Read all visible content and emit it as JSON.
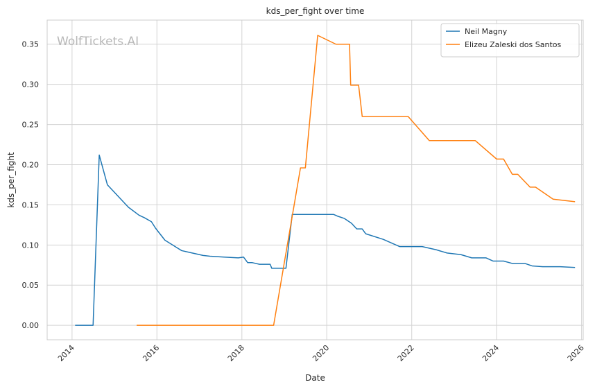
{
  "chart_data": {
    "type": "line",
    "title": "kds_per_fight over time",
    "xlabel": "Date",
    "ylabel": "kds_per_fight",
    "watermark": "WolfTickets.AI",
    "x_type": "date",
    "xlim": [
      "2013-06-01",
      "2026-01-15"
    ],
    "ylim": [
      -0.018,
      0.38
    ],
    "x_ticks": [
      "2014",
      "2016",
      "2018",
      "2020",
      "2022",
      "2024",
      "2026"
    ],
    "y_ticks": [
      "0.00",
      "0.05",
      "0.10",
      "0.15",
      "0.20",
      "0.25",
      "0.30",
      "0.35"
    ],
    "grid": true,
    "legend_position": "top-right",
    "series": [
      {
        "name": "Neil Magny",
        "color": "#1f77b4",
        "points": [
          [
            "2014-02-01",
            0.0
          ],
          [
            "2014-07-01",
            0.0
          ],
          [
            "2014-08-23",
            0.212
          ],
          [
            "2014-11-01",
            0.175
          ],
          [
            "2015-05-01",
            0.147
          ],
          [
            "2015-08-01",
            0.137
          ],
          [
            "2015-09-15",
            0.134
          ],
          [
            "2015-11-15",
            0.129
          ],
          [
            "2015-12-20",
            0.121
          ],
          [
            "2016-03-10",
            0.106
          ],
          [
            "2016-08-01",
            0.093
          ],
          [
            "2016-10-01",
            0.091
          ],
          [
            "2017-02-01",
            0.087
          ],
          [
            "2017-04-01",
            0.086
          ],
          [
            "2017-08-01",
            0.085
          ],
          [
            "2017-12-01",
            0.084
          ],
          [
            "2018-01-15",
            0.085
          ],
          [
            "2018-02-20",
            0.078
          ],
          [
            "2018-04-01",
            0.078
          ],
          [
            "2018-06-01",
            0.076
          ],
          [
            "2018-09-01",
            0.076
          ],
          [
            "2018-09-15",
            0.071
          ],
          [
            "2019-01-15",
            0.071
          ],
          [
            "2019-03-10",
            0.138
          ],
          [
            "2020-03-01",
            0.138
          ],
          [
            "2020-04-01",
            0.136
          ],
          [
            "2020-06-01",
            0.133
          ],
          [
            "2020-08-01",
            0.127
          ],
          [
            "2020-09-15",
            0.12
          ],
          [
            "2020-11-01",
            0.12
          ],
          [
            "2020-12-01",
            0.114
          ],
          [
            "2021-05-01",
            0.107
          ],
          [
            "2021-09-20",
            0.098
          ],
          [
            "2022-04-01",
            0.098
          ],
          [
            "2022-08-01",
            0.094
          ],
          [
            "2022-11-01",
            0.09
          ],
          [
            "2023-03-01",
            0.088
          ],
          [
            "2023-06-01",
            0.084
          ],
          [
            "2023-10-01",
            0.084
          ],
          [
            "2023-12-01",
            0.08
          ],
          [
            "2024-03-01",
            0.08
          ],
          [
            "2024-05-15",
            0.077
          ],
          [
            "2024-09-01",
            0.077
          ],
          [
            "2024-11-01",
            0.074
          ],
          [
            "2025-02-01",
            0.073
          ],
          [
            "2025-07-01",
            0.073
          ],
          [
            "2025-11-01",
            0.072
          ]
        ]
      },
      {
        "name": "Elizeu Zaleski dos Santos",
        "color": "#ff7f0e",
        "points": [
          [
            "2015-07-15",
            0.0
          ],
          [
            "2018-10-01",
            0.0
          ],
          [
            "2019-05-20",
            0.196
          ],
          [
            "2019-07-01",
            0.196
          ],
          [
            "2019-10-15",
            0.361
          ],
          [
            "2020-03-20",
            0.35
          ],
          [
            "2020-07-15",
            0.35
          ],
          [
            "2020-07-25",
            0.299
          ],
          [
            "2020-10-01",
            0.299
          ],
          [
            "2020-11-01",
            0.26
          ],
          [
            "2021-12-01",
            0.26
          ],
          [
            "2022-06-01",
            0.23
          ],
          [
            "2023-07-01",
            0.23
          ],
          [
            "2024-01-01",
            0.207
          ],
          [
            "2024-03-01",
            0.207
          ],
          [
            "2024-05-15",
            0.188
          ],
          [
            "2024-07-01",
            0.188
          ],
          [
            "2024-10-15",
            0.172
          ],
          [
            "2024-12-01",
            0.172
          ],
          [
            "2025-05-01",
            0.157
          ],
          [
            "2025-11-01",
            0.154
          ]
        ]
      }
    ]
  }
}
